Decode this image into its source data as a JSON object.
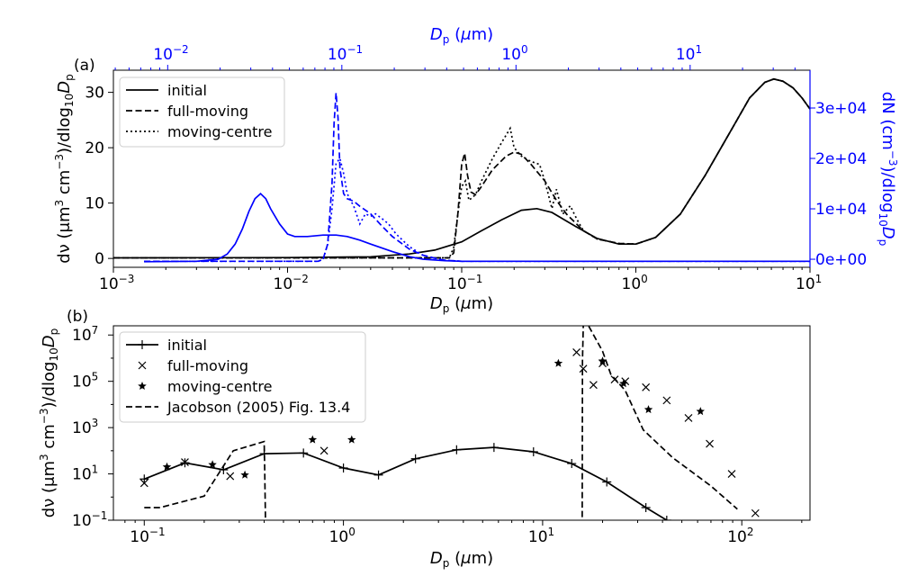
{
  "chart_data": [
    {
      "id": "a",
      "type": "line",
      "panel_label": "(a)",
      "xlabel": "D_p (μm)",
      "x_top_label": "D_p (μm)",
      "ylabel": "dν (μm³ cm⁻³)/dlog₁₀D_p",
      "ylabel_right": "dN (cm⁻³)/dlog₁₀D_p",
      "x_scale": "log",
      "xlim": [
        0.001,
        10
      ],
      "ylim": [
        -1.6,
        34
      ],
      "yticks": [
        0,
        10,
        20,
        30
      ],
      "x_ticks": [
        "10^-3",
        "10^-2",
        "10^-1",
        "10^0",
        "10^1"
      ],
      "x_top_scale": "log",
      "x_top_ticks": [
        "10^-2",
        "10^-1",
        "10^0",
        "10^1"
      ],
      "x_top_tick_values": [
        0.01,
        0.1,
        1,
        10
      ],
      "x_top_offset_factor": 0.205,
      "y_right_ticks": [
        "0e+00",
        "1e+04",
        "2e+04",
        "3e+04"
      ],
      "y_right_tick_values": [
        0,
        10000,
        20000,
        30000
      ],
      "y_right_lim": [
        -1600,
        37500
      ],
      "legend": "top-left",
      "colors": {
        "left_axis": "#000000",
        "right_axis": "#0000ff"
      },
      "series": [
        {
          "name": "initial",
          "axis": "left",
          "style": "solid",
          "color": "#000000",
          "x": [
            0.001,
            0.01,
            0.03,
            0.05,
            0.07,
            0.1,
            0.13,
            0.17,
            0.22,
            0.27,
            0.33,
            0.45,
            0.6,
            0.8,
            1.0,
            1.3,
            1.8,
            2.5,
            3.5,
            4.5,
            5.5,
            6.2,
            7.0,
            8.0,
            9.0,
            10.0
          ],
          "y": [
            0.1,
            0.15,
            0.3,
            0.8,
            1.5,
            3.0,
            5.0,
            7.0,
            8.7,
            9.0,
            8.3,
            5.8,
            3.6,
            2.6,
            2.6,
            3.8,
            8.0,
            15.0,
            23.0,
            29.0,
            31.8,
            32.4,
            32.0,
            30.8,
            29.0,
            27.0
          ]
        },
        {
          "name": "full-moving",
          "axis": "left",
          "style": "dashed",
          "color": "#000000",
          "x": [
            0.001,
            0.085,
            0.09,
            0.095,
            0.1,
            0.104,
            0.108,
            0.113,
            0.12,
            0.13,
            0.15,
            0.18,
            0.2,
            0.22,
            0.25,
            0.3,
            0.35,
            0.4,
            0.5,
            0.6,
            0.8,
            1.0,
            1.3,
            1.8,
            2.5,
            3.5,
            4.5,
            5.5,
            6.2,
            7.0,
            8.0,
            9.0,
            10.0
          ],
          "y": [
            0.1,
            0.1,
            1.0,
            8.0,
            17.0,
            19.0,
            15.0,
            12.0,
            11.5,
            13.0,
            16.0,
            18.5,
            19.2,
            18.8,
            17.0,
            14.0,
            10.5,
            8.0,
            5.0,
            3.5,
            2.7,
            2.6,
            3.8,
            8.0,
            15.0,
            23.0,
            29.0,
            31.8,
            32.4,
            32.0,
            30.8,
            29.0,
            27.0
          ]
        },
        {
          "name": "moving-centre",
          "axis": "left",
          "style": "dotted",
          "color": "#000000",
          "x": [
            0.001,
            0.085,
            0.09,
            0.095,
            0.1,
            0.105,
            0.11,
            0.12,
            0.13,
            0.15,
            0.17,
            0.19,
            0.2,
            0.22,
            0.25,
            0.28,
            0.3,
            0.33,
            0.35,
            0.38,
            0.42,
            0.46,
            0.5,
            0.6,
            0.8,
            1.0,
            1.3,
            1.8,
            2.5,
            3.5,
            4.5,
            5.5,
            6.2,
            7.0,
            8.0,
            9.0,
            10.0
          ],
          "y": [
            0.1,
            0.1,
            2.0,
            8.0,
            13.0,
            14.0,
            10.5,
            11.5,
            14.0,
            18.0,
            21.0,
            23.5,
            20.0,
            18.5,
            17.5,
            17.0,
            14.0,
            9.0,
            12.5,
            8.0,
            9.5,
            7.0,
            5.0,
            3.5,
            2.7,
            2.6,
            3.8,
            8.0,
            15.0,
            23.0,
            29.0,
            31.8,
            32.4,
            32.0,
            30.8,
            29.0,
            27.0
          ]
        },
        {
          "name": "",
          "axis": "right",
          "style": "solid",
          "color": "#0000ff",
          "x": [
            0.0015,
            0.003,
            0.004,
            0.0045,
            0.005,
            0.0055,
            0.006,
            0.0065,
            0.007,
            0.0075,
            0.008,
            0.009,
            0.01,
            0.011,
            0.013,
            0.016,
            0.019,
            0.022,
            0.026,
            0.03,
            0.04,
            0.05,
            0.06,
            0.08,
            0.1,
            0.15,
            0.2,
            0.5,
            1.0,
            10.0
          ],
          "y": [
            -500,
            -400,
            0,
            1000,
            3000,
            6000,
            9500,
            12000,
            13000,
            12000,
            10000,
            7000,
            5000,
            4500,
            4500,
            4800,
            4800,
            4500,
            3800,
            3000,
            1500,
            500,
            0,
            -300,
            -400,
            -400,
            -400,
            -400,
            -400,
            -400
          ]
        },
        {
          "name": "",
          "axis": "right",
          "style": "dashed",
          "color": "#0000ff",
          "x": [
            0.0015,
            0.015,
            0.016,
            0.017,
            0.018,
            0.0185,
            0.019,
            0.0195,
            0.02,
            0.021,
            0.022,
            0.024,
            0.026,
            0.03,
            0.035,
            0.04,
            0.05,
            0.06,
            0.07,
            0.08,
            0.1,
            10.0
          ],
          "y": [
            -400,
            -400,
            0,
            3000,
            15000,
            27000,
            33000,
            28000,
            18000,
            13000,
            12000,
            11500,
            10500,
            9000,
            6500,
            4500,
            2000,
            800,
            200,
            -200,
            -400,
            -400
          ]
        },
        {
          "name": "",
          "axis": "right",
          "style": "dotted",
          "color": "#0000ff",
          "x": [
            0.0015,
            0.015,
            0.016,
            0.017,
            0.018,
            0.019,
            0.02,
            0.021,
            0.022,
            0.024,
            0.026,
            0.028,
            0.03,
            0.032,
            0.035,
            0.038,
            0.042,
            0.05,
            0.06,
            0.07,
            0.08,
            0.1,
            10.0
          ],
          "y": [
            -400,
            -400,
            0,
            3000,
            10000,
            19000,
            20000,
            17000,
            13000,
            10500,
            7000,
            9000,
            8500,
            9000,
            8000,
            7000,
            5000,
            2500,
            800,
            200,
            -200,
            -400,
            -400
          ]
        }
      ]
    },
    {
      "id": "b",
      "type": "line",
      "panel_label": "(b)",
      "xlabel": "D_p (μm)",
      "ylabel": "dν (μm³ cm⁻³)/dlog₁₀D_p",
      "x_scale": "log",
      "y_scale": "log",
      "xlim": [
        0.07,
        220
      ],
      "ylim": [
        0.1,
        25000000
      ],
      "x_ticks": [
        "10^-1",
        "10^0",
        "10^1",
        "10^2"
      ],
      "y_ticks": [
        "10^-1",
        "10^1",
        "10^3",
        "10^5",
        "10^7"
      ],
      "legend": "top-left",
      "series": [
        {
          "name": "initial",
          "style": "solid-plus",
          "color": "#000000",
          "x": [
            0.1,
            0.16,
            0.25,
            0.4,
            0.63,
            1.0,
            1.5,
            2.3,
            3.7,
            5.7,
            9.0,
            14.0,
            21.0,
            33.0,
            42.0
          ],
          "y": [
            6,
            30,
            15,
            75,
            80,
            18,
            9,
            45,
            110,
            140,
            90,
            28,
            4.5,
            0.35,
            0.1
          ]
        },
        {
          "name": "full-moving",
          "style": "x",
          "color": "#000000",
          "x": [
            0.1,
            0.16,
            0.27,
            0.8,
            14.8,
            16.0,
            18.0,
            20.0,
            23.0,
            26.0,
            33.0,
            42.0,
            54.0,
            69.0,
            89.0,
            117.0
          ],
          "y": [
            4,
            32,
            8,
            100,
            1800000,
            350000,
            70000,
            600000,
            120000,
            100000,
            55000,
            15000,
            2600,
            200,
            10,
            0.2
          ]
        },
        {
          "name": "moving-centre",
          "style": "star",
          "color": "#000000",
          "x": [
            0.13,
            0.22,
            0.32,
            0.7,
            1.1,
            12.0,
            20.0,
            25.5,
            34.0,
            62.0
          ],
          "y": [
            20,
            25,
            9,
            300,
            300,
            600000,
            750000,
            80000,
            6000,
            5000
          ]
        },
        {
          "name": "Jacobson (2005) Fig. 13.4",
          "style": "dashed",
          "color": "#000000",
          "x": [
            0.1,
            0.12,
            0.2,
            0.28,
            0.4,
            0.402,
            0.406,
            15.8,
            15.85,
            16.0,
            16.2,
            17.0,
            20.0,
            22.0,
            26.0,
            32.0,
            45.0,
            70.0,
            95.0
          ],
          "y": [
            0.35,
            0.35,
            1.1,
            100,
            250,
            30,
            0.09,
            0.09,
            800000,
            25000000,
            30000000,
            25000000,
            2000000,
            200000,
            40000,
            800,
            50,
            3,
            0.3
          ]
        }
      ]
    }
  ]
}
